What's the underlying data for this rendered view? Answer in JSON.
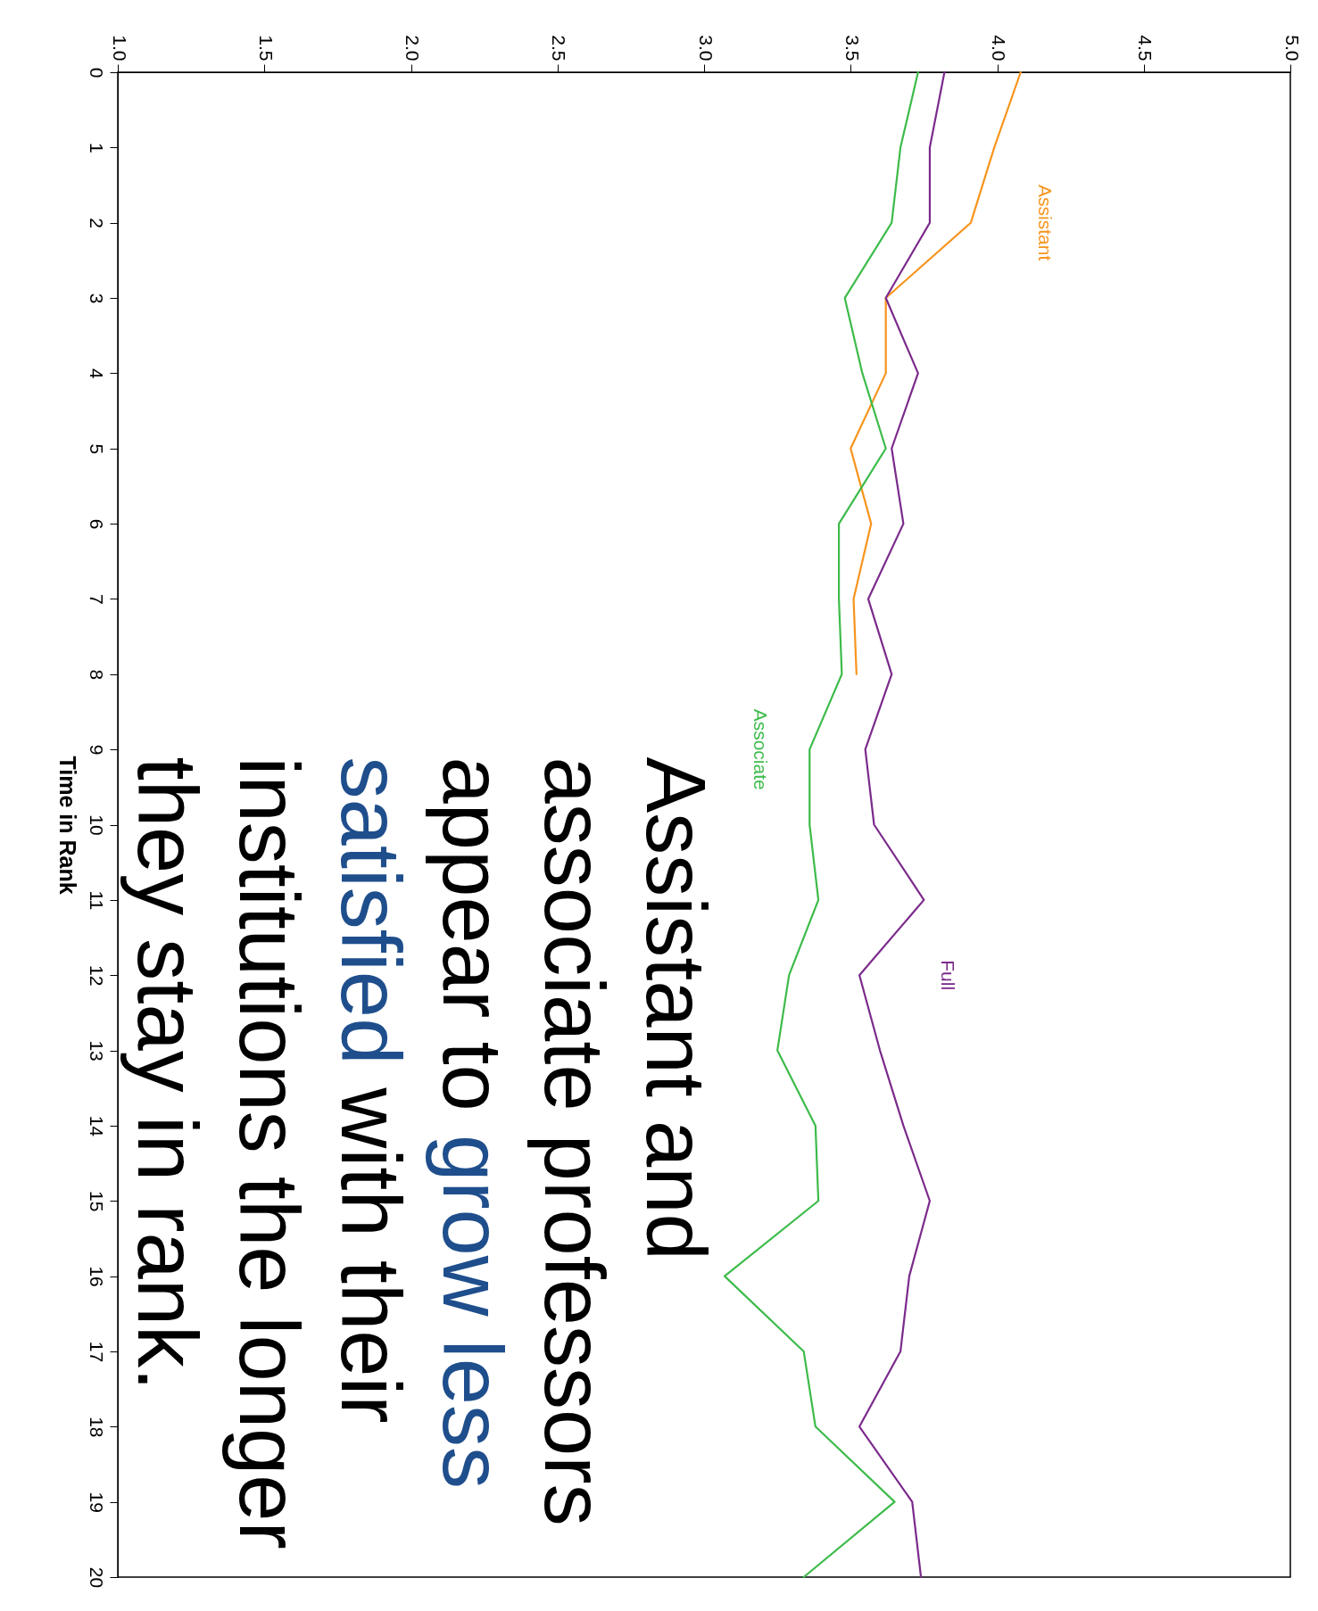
{
  "chart_data": {
    "type": "line",
    "ylabel": "Time in Rank",
    "series": [
      {
        "name": "Assistant",
        "color": "#f7941d",
        "x": [
          4.08,
          3.99,
          3.91,
          3.62,
          3.62,
          3.5,
          3.57,
          3.51,
          3.52
        ],
        "values": [
          0,
          1,
          2,
          3,
          4,
          5,
          6,
          7,
          8
        ]
      },
      {
        "name": "Associate",
        "color": "#3dbb4a",
        "x": [
          3.73,
          3.67,
          3.64,
          3.48,
          3.54,
          3.62,
          3.46,
          3.46,
          3.47,
          3.36,
          3.36,
          3.39,
          3.29,
          3.25,
          3.38,
          3.39,
          3.07,
          3.34,
          3.38,
          3.65,
          3.34
        ],
        "values": [
          0,
          1,
          2,
          3,
          4,
          5,
          6,
          7,
          8,
          9,
          10,
          11,
          12,
          13,
          14,
          15,
          16,
          17,
          18,
          19,
          20
        ]
      },
      {
        "name": "Full",
        "color": "#7b2a8b",
        "x": [
          3.82,
          3.77,
          3.77,
          3.62,
          3.73,
          3.64,
          3.68,
          3.56,
          3.64,
          3.55,
          3.58,
          3.75,
          3.53,
          3.6,
          3.68,
          3.77,
          3.7,
          3.67,
          3.53,
          3.71,
          3.74
        ],
        "values": [
          0,
          1,
          2,
          3,
          4,
          5,
          6,
          7,
          8,
          9,
          10,
          11,
          12,
          13,
          14,
          15,
          16,
          17,
          18,
          19,
          20
        ]
      }
    ],
    "ylim": [
      20,
      0
    ],
    "yticks": [
      0,
      1,
      2,
      3,
      4,
      5,
      6,
      7,
      8,
      9,
      10,
      11,
      12,
      13,
      14,
      15,
      16,
      17,
      18,
      19,
      20
    ],
    "xlim": [
      1,
      5
    ],
    "xticks": [
      {
        "value": 1,
        "label": "1.0"
      },
      {
        "value": 1.5,
        "label": "1.5"
      },
      {
        "value": 2,
        "label": "2.0"
      },
      {
        "value": 2.5,
        "label": "2.5"
      },
      {
        "value": 3,
        "label": "3.0"
      },
      {
        "value": 3.5,
        "label": "3.5"
      },
      {
        "value": 4,
        "label": "4.0"
      },
      {
        "value": 4.5,
        "label": "4.5"
      },
      {
        "value": 5,
        "label": "5.0"
      }
    ],
    "grid": false,
    "annotations": [
      "Assistant and associate professors appear to ",
      "grow less satisfied",
      " with their institutions the longer they stay in rank."
    ]
  }
}
